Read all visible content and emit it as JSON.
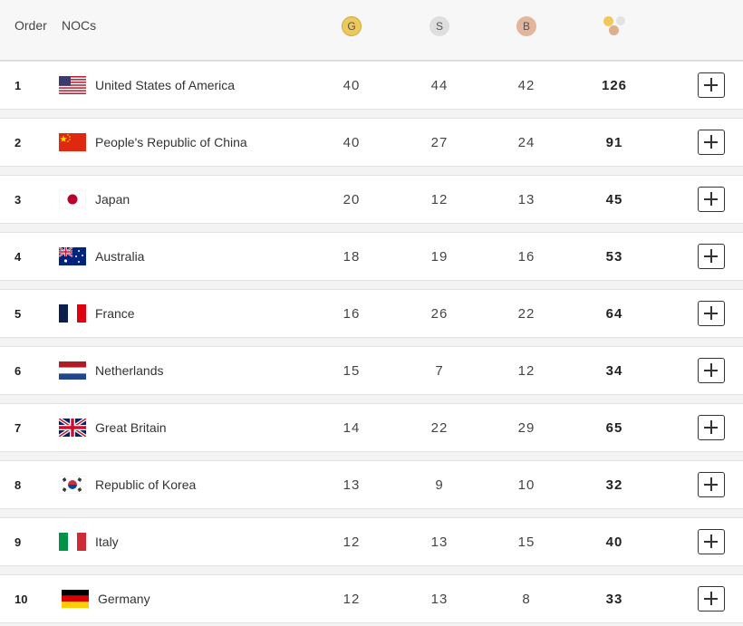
{
  "header": {
    "order_label": "Order",
    "nocs_label": "NOCs",
    "gold_label": "G",
    "silver_label": "S",
    "bronze_label": "B"
  },
  "colors": {
    "gold": "#ecc95c",
    "silver": "#dedede",
    "bronze": "#e3b59a"
  },
  "rows": [
    {
      "order": "1",
      "country": "United States of America",
      "flag": "usa-flag",
      "gold": "40",
      "silver": "44",
      "bronze": "42",
      "total": "126"
    },
    {
      "order": "2",
      "country": "People's Republic of China",
      "flag": "china-flag",
      "gold": "40",
      "silver": "27",
      "bronze": "24",
      "total": "91"
    },
    {
      "order": "3",
      "country": "Japan",
      "flag": "japan-flag",
      "gold": "20",
      "silver": "12",
      "bronze": "13",
      "total": "45"
    },
    {
      "order": "4",
      "country": "Australia",
      "flag": "australia-flag",
      "gold": "18",
      "silver": "19",
      "bronze": "16",
      "total": "53"
    },
    {
      "order": "5",
      "country": "France",
      "flag": "france-flag",
      "gold": "16",
      "silver": "26",
      "bronze": "22",
      "total": "64"
    },
    {
      "order": "6",
      "country": "Netherlands",
      "flag": "netherlands-flag",
      "gold": "15",
      "silver": "7",
      "bronze": "12",
      "total": "34"
    },
    {
      "order": "7",
      "country": "Great Britain",
      "flag": "great-britain-flag",
      "gold": "14",
      "silver": "22",
      "bronze": "29",
      "total": "65"
    },
    {
      "order": "8",
      "country": "Republic of Korea",
      "flag": "korea-flag",
      "gold": "13",
      "silver": "9",
      "bronze": "10",
      "total": "32"
    },
    {
      "order": "9",
      "country": "Italy",
      "flag": "italy-flag",
      "gold": "12",
      "silver": "13",
      "bronze": "15",
      "total": "40"
    },
    {
      "order": "10",
      "country": "Germany",
      "flag": "germany-flag",
      "gold": "12",
      "silver": "13",
      "bronze": "8",
      "total": "33"
    }
  ]
}
